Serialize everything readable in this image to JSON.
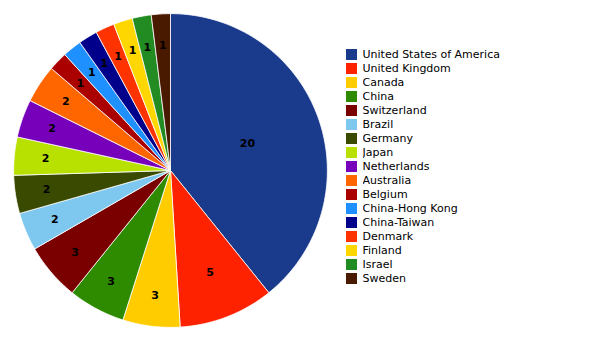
{
  "chart_data": {
    "type": "pie",
    "categories": [
      "United States of America",
      "United Kingdom",
      "Canada",
      "China",
      "Switzerland",
      "Brazil",
      "Germany",
      "Japan",
      "Netherlands",
      "Australia",
      "Belgium",
      "China-Hong Kong",
      "China-Taiwan",
      "Denmark",
      "Finland",
      "Israel",
      "Sweden"
    ],
    "values": [
      20,
      5,
      3,
      3,
      3,
      2,
      2,
      2,
      2,
      2,
      1,
      1,
      1,
      1,
      1,
      1,
      1
    ],
    "colors": [
      "#1a3a8c",
      "#ff2200",
      "#ffcc00",
      "#2e8b00",
      "#7a0000",
      "#7ec8f0",
      "#3a4a00",
      "#b8e000",
      "#7700bb",
      "#ff6600",
      "#aa0000",
      "#1e90ff",
      "#00008b",
      "#ff3300",
      "#ffd700",
      "#228b22",
      "#4a1a00"
    ],
    "data_labels": true,
    "legend": "right"
  }
}
